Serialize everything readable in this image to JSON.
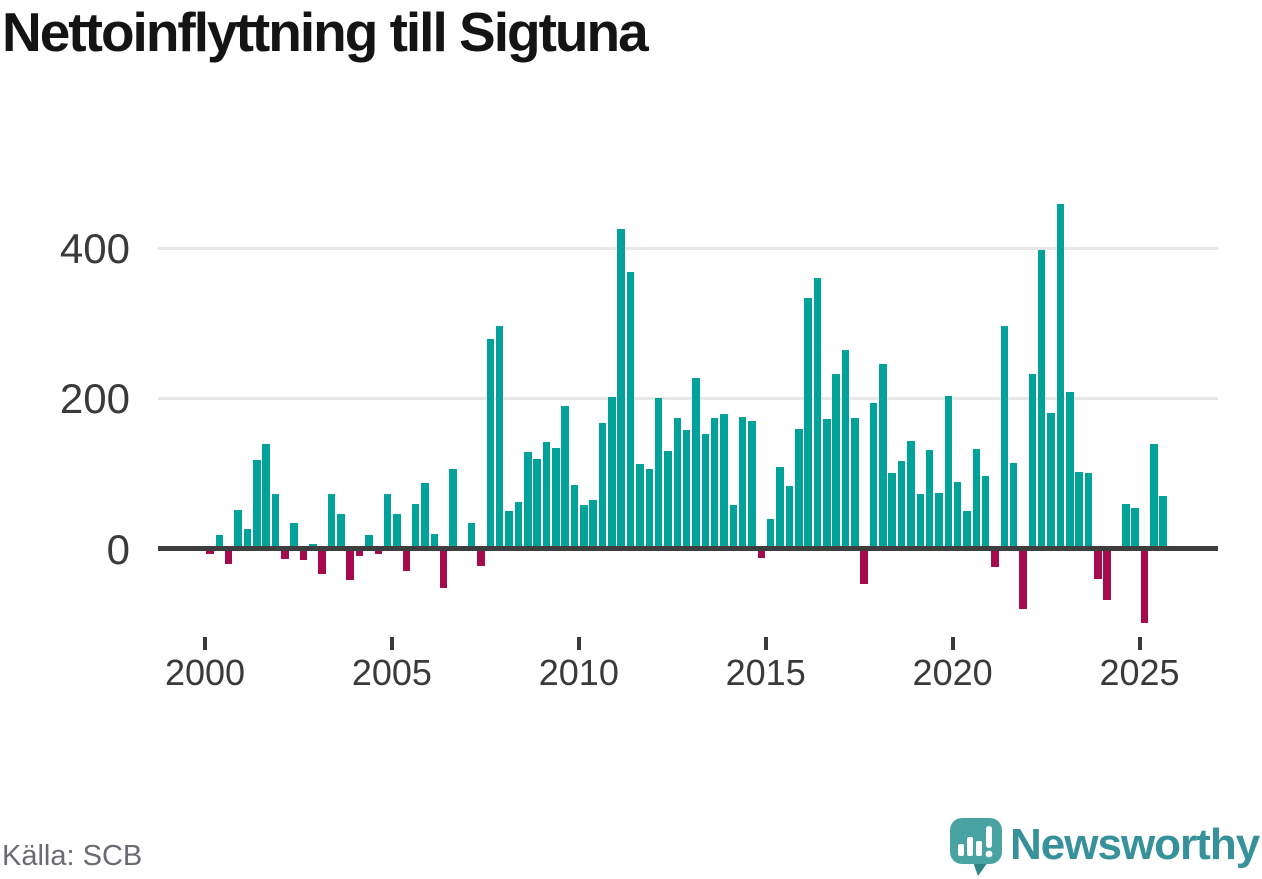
{
  "footer": {
    "source": "Källa: SCB",
    "brand": "Newsworthy"
  },
  "colors": {
    "positive_bar": "#00a29a",
    "negative_bar": "#a60b4d",
    "axis_line": "#3e3e3e",
    "gridline": "#e7e7e7",
    "tick_text": "#3a3a3a",
    "source_text": "#6b6b74",
    "brand_text": "#37919a",
    "logo_bubble": "#4aa3a3",
    "logo_bubble_shade": "#2f8585"
  },
  "chart_data": {
    "type": "bar",
    "title": "Nettoinflyttning till Sigtuna",
    "frequency": "quarterly",
    "start": "2000 Q1",
    "end": "2025 Q3",
    "x_tick_labels": [
      "2000",
      "2005",
      "2010",
      "2015",
      "2020",
      "2025"
    ],
    "y_tick_labels": [
      "400",
      "200",
      "0"
    ],
    "ylim": [
      -110,
      470
    ],
    "grid": "horizontal-only",
    "legend": "none",
    "values_by_year": [
      {
        "year": 2000,
        "values": [
          -8,
          18,
          -21,
          51
        ]
      },
      {
        "year": 2001,
        "values": [
          26,
          118,
          140,
          72
        ]
      },
      {
        "year": 2002,
        "values": [
          -15,
          33,
          -16,
          6
        ]
      },
      {
        "year": 2003,
        "values": [
          -35,
          72,
          46,
          -43
        ]
      },
      {
        "year": 2004,
        "values": [
          -11,
          18,
          -8,
          73
        ]
      },
      {
        "year": 2005,
        "values": [
          45,
          -31,
          59,
          87
        ]
      },
      {
        "year": 2006,
        "values": [
          19,
          -54,
          106,
          0
        ]
      },
      {
        "year": 2007,
        "values": [
          33,
          -24,
          280,
          297
        ]
      },
      {
        "year": 2008,
        "values": [
          50,
          61,
          129,
          119
        ]
      },
      {
        "year": 2009,
        "values": [
          142,
          134,
          191,
          84
        ]
      },
      {
        "year": 2010,
        "values": [
          57,
          65,
          167,
          202
        ]
      },
      {
        "year": 2011,
        "values": [
          428,
          370,
          112,
          106
        ]
      },
      {
        "year": 2012,
        "values": [
          201,
          130,
          174,
          158
        ]
      },
      {
        "year": 2013,
        "values": [
          228,
          153,
          174,
          180
        ]
      },
      {
        "year": 2014,
        "values": [
          58,
          176,
          170,
          -14
        ]
      },
      {
        "year": 2015,
        "values": [
          39,
          108,
          83,
          159
        ]
      },
      {
        "year": 2016,
        "values": [
          335,
          362,
          173,
          233
        ]
      },
      {
        "year": 2017,
        "values": [
          266,
          174,
          -48,
          195
        ]
      },
      {
        "year": 2018,
        "values": [
          247,
          100,
          117,
          143
        ]
      },
      {
        "year": 2019,
        "values": [
          73,
          132,
          74,
          204
        ]
      },
      {
        "year": 2020,
        "values": [
          89,
          50,
          133,
          97
        ]
      },
      {
        "year": 2021,
        "values": [
          -25,
          297,
          114,
          -82
        ]
      },
      {
        "year": 2022,
        "values": [
          233,
          399,
          181,
          461
        ]
      },
      {
        "year": 2023,
        "values": [
          209,
          102,
          101,
          -42
        ]
      },
      {
        "year": 2024,
        "values": [
          -70,
          0,
          59,
          54
        ]
      },
      {
        "year": 2025,
        "values": [
          -100,
          140,
          70
        ]
      }
    ]
  }
}
